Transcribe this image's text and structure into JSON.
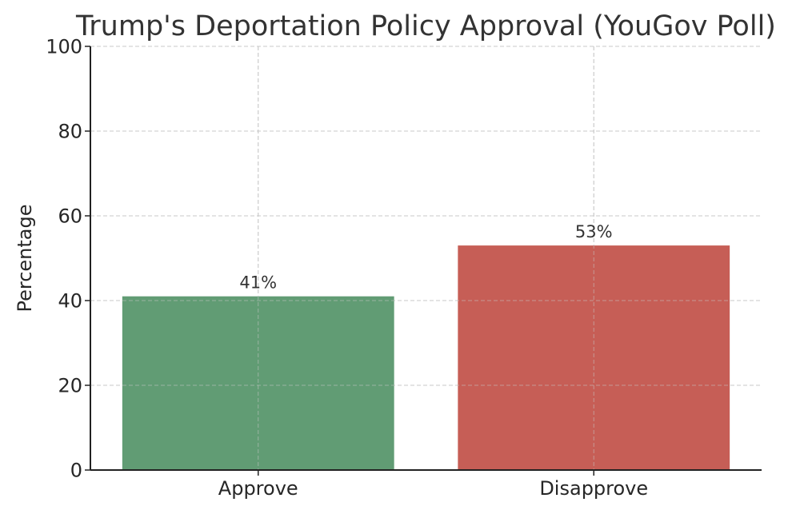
{
  "chart_data": {
    "type": "bar",
    "title": "Trump's Deportation Policy Approval (YouGov Poll)",
    "xlabel": "",
    "ylabel": "Percentage",
    "categories": [
      "Approve",
      "Disapprove"
    ],
    "values": [
      41,
      53
    ],
    "data_labels": [
      "41%",
      "53%"
    ],
    "colors": [
      "#619c74",
      "#c65e56"
    ],
    "ylim": [
      0,
      100
    ],
    "yticks": [
      0,
      20,
      40,
      60,
      80,
      100
    ],
    "grid": true,
    "legend": "none"
  }
}
